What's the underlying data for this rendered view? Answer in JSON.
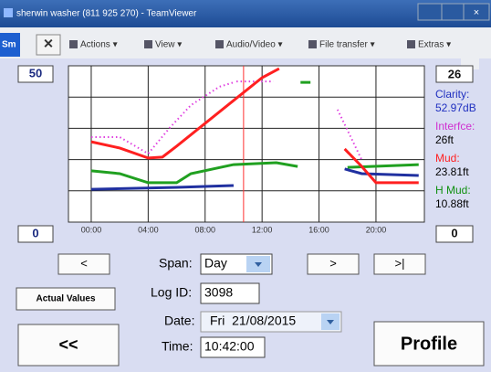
{
  "window": {
    "title": "sherwin washer (811 925 270) - TeamViewer",
    "tab": "Sm"
  },
  "toolbar": {
    "items": [
      "Actions ▾",
      "View ▾",
      "Audio/Video ▾",
      "File transfer ▾",
      "Extras ▾"
    ]
  },
  "chart_data": {
    "type": "line",
    "xlim": [
      -1.6,
      23.4
    ],
    "ylim": [
      0,
      50
    ],
    "y2lim": [
      0,
      26
    ],
    "xticks": [
      {
        "value": 0,
        "label": "00:00"
      },
      {
        "value": 4,
        "label": "04:00"
      },
      {
        "value": 8,
        "label": "08:00"
      },
      {
        "value": 12,
        "label": "12:00"
      },
      {
        "value": 16,
        "label": "16:00"
      },
      {
        "value": 20,
        "label": "20:00"
      }
    ],
    "yticks": [
      10,
      20,
      30,
      40
    ],
    "grid": true,
    "cursor_x": 10.7,
    "series": [
      {
        "name": "Interfce",
        "color": "#e040e0",
        "dashed": true,
        "x": [
          0,
          2,
          4,
          5.5,
          7,
          9,
          10,
          null,
          10.2,
          12.8,
          null,
          17.3,
          19
        ],
        "values": [
          27.2,
          27.2,
          21.9,
          30.1,
          37.4,
          43.3,
          44.7,
          null,
          45,
          45,
          null,
          36,
          19.9
        ]
      },
      {
        "name": "H Mud",
        "color": "#20a020",
        "x": [
          0,
          2,
          4,
          6,
          7,
          10,
          13,
          14.5,
          null,
          14.7,
          15.4,
          null,
          18,
          23
        ],
        "values": [
          16.4,
          15.5,
          12.6,
          12.6,
          15.5,
          18.4,
          19.0,
          17.8,
          null,
          44.7,
          44.7,
          null,
          17.5,
          18.4
        ]
      },
      {
        "name": "Clarity",
        "color": "#2030a0",
        "x": [
          0,
          6,
          10,
          null,
          17.8,
          19,
          23
        ],
        "values": [
          10.5,
          11.1,
          11.7,
          null,
          17.0,
          15.5,
          14.9
        ]
      },
      {
        "name": "Mud",
        "color": "#ff2020",
        "x": [
          0,
          2,
          4,
          5,
          6,
          8,
          10,
          12,
          13.2,
          null,
          17.8,
          19,
          20,
          23
        ],
        "values": [
          25.7,
          23.7,
          20.5,
          20.8,
          24.3,
          31.6,
          38.9,
          46.2,
          49.1,
          null,
          23.4,
          17.8,
          12.6,
          12.6
        ]
      }
    ]
  },
  "readouts": [
    {
      "label": "Clarity:",
      "value": "52.97dB",
      "color": "#2030c0",
      "vcolor": "#2030c0"
    },
    {
      "label": "Interfce:",
      "value": "26ft",
      "color": "#d030d0",
      "vcolor": "#000000"
    },
    {
      "label": "Mud:",
      "value": "23.81ft",
      "color": "#ff2020",
      "vcolor": "#000000"
    },
    {
      "label": "H Mud:",
      "value": "10.88ft",
      "color": "#109010",
      "vcolor": "#000000"
    }
  ],
  "controls": {
    "prev": "<",
    "span_label": "Span:",
    "span": "Day",
    "next": ">",
    "last": ">|",
    "actual": "Actual Values",
    "logid_label": "Log ID:",
    "logid": "3098",
    "date_label": "Date:",
    "date": "Fri  21/08/2015",
    "back": "<<",
    "time_label": "Time:",
    "time": "10:42:00",
    "profile": "Profile"
  }
}
